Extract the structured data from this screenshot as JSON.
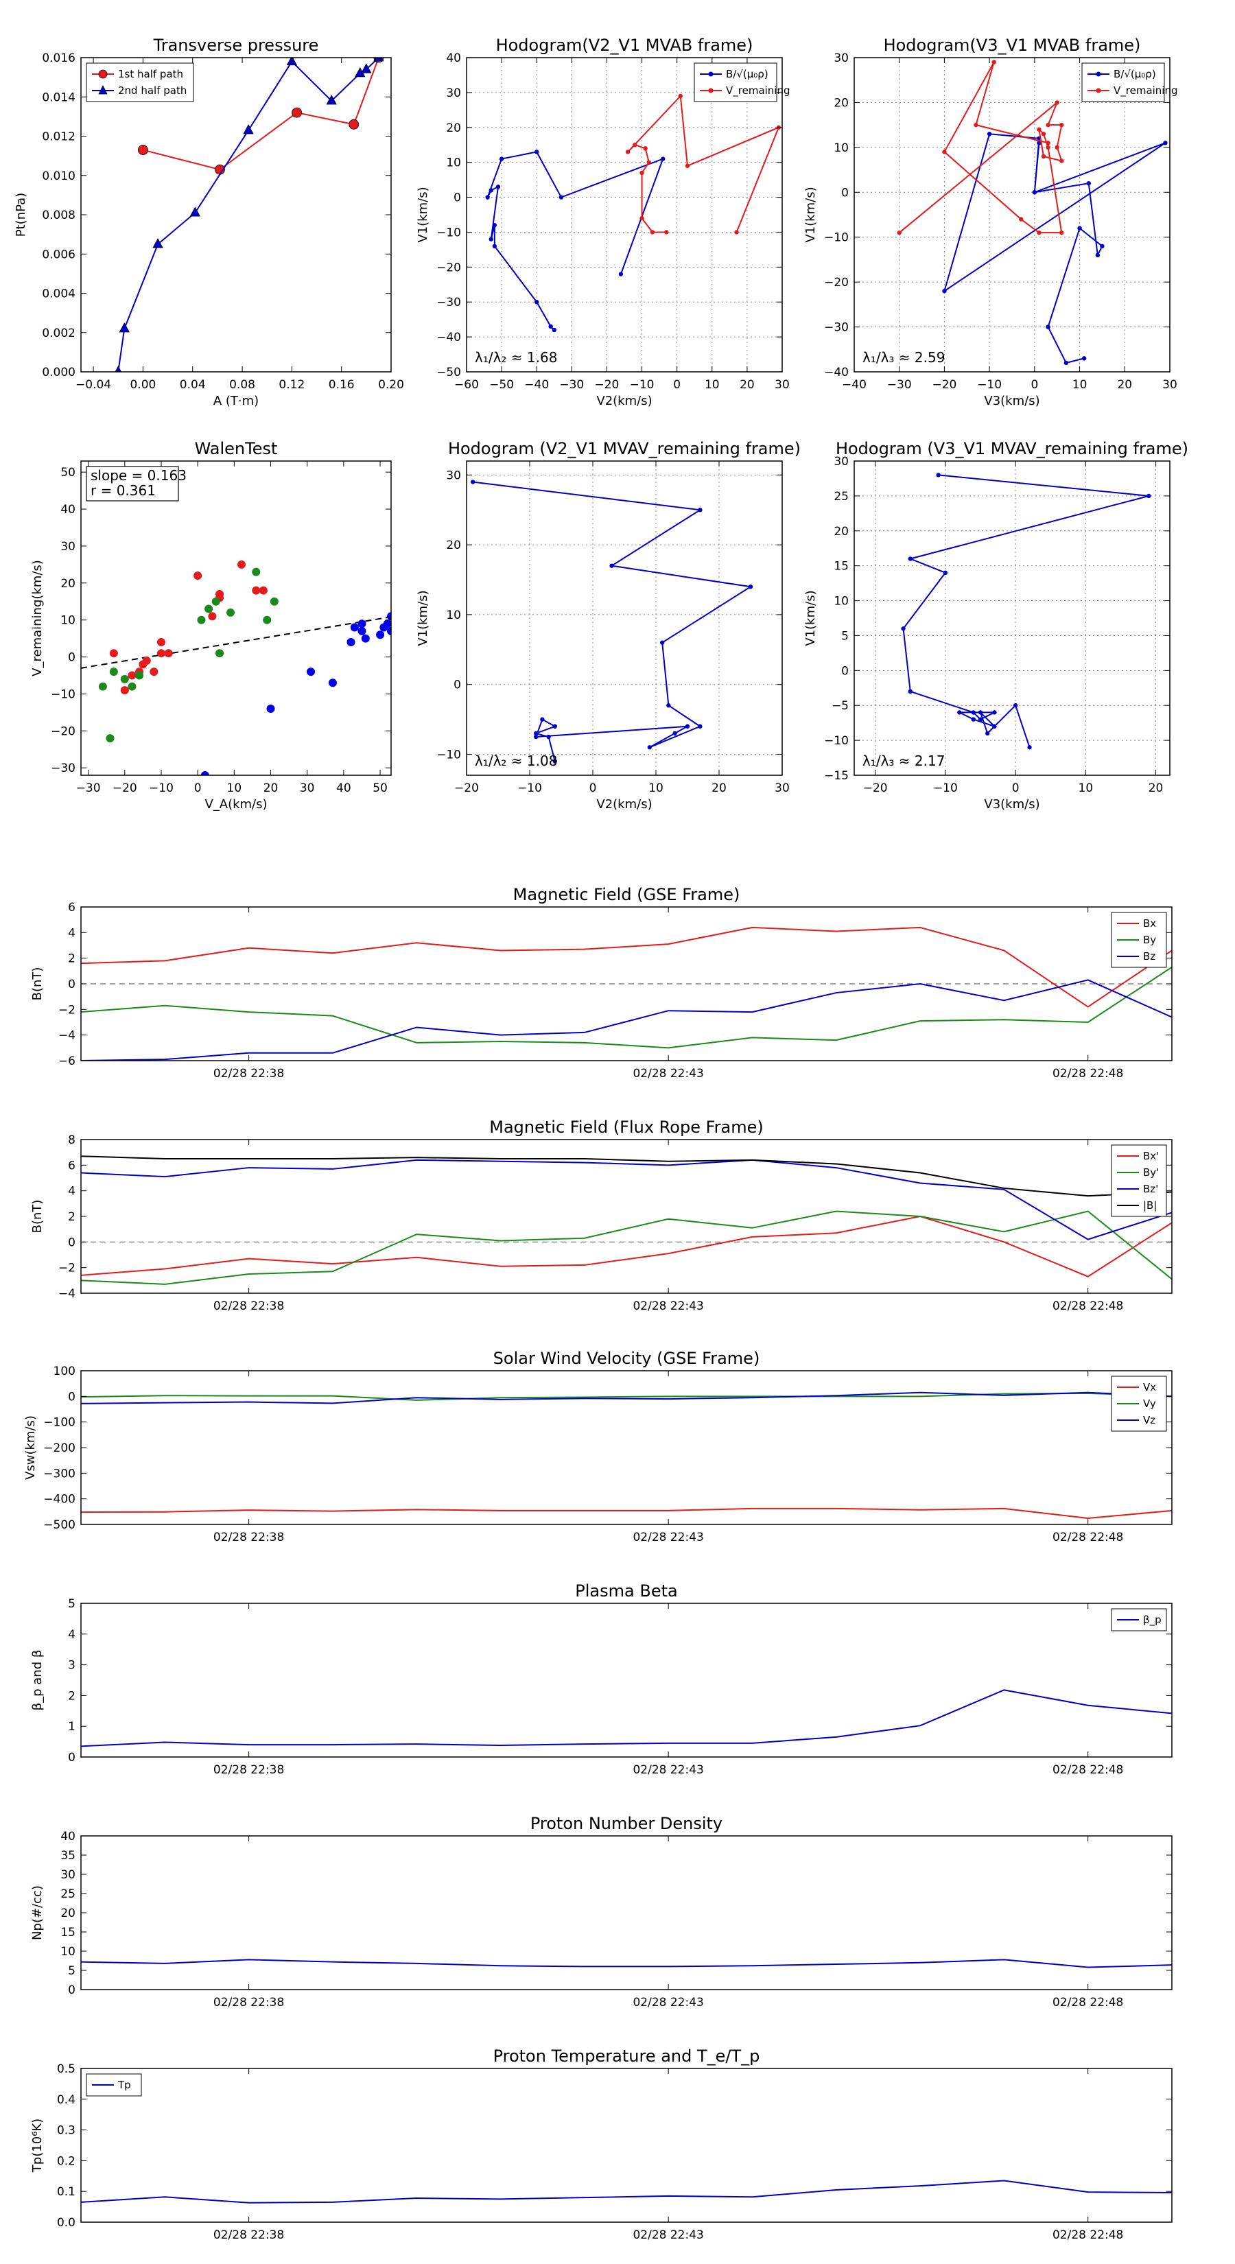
{
  "chart_data": [
    {
      "id": "p1",
      "type": "line",
      "title": "Transverse pressure",
      "xlabel": "A (T·m)",
      "ylabel": "Pt(nPa)",
      "xlim": [
        -0.05,
        0.2
      ],
      "ylim": [
        0,
        0.016
      ],
      "xticks": [
        -0.04,
        0.0,
        0.04,
        0.08,
        0.12,
        0.16,
        0.2
      ],
      "xticklabels": [
        "−0.04",
        "0.00",
        "0.04",
        "0.08",
        "0.12",
        "0.16",
        "0.20"
      ],
      "yticks": [
        0,
        0.002,
        0.004,
        0.006,
        0.008,
        0.01,
        0.012,
        0.014,
        0.016
      ],
      "yticklabels": [
        "0.000",
        "0.002",
        "0.004",
        "0.006",
        "0.008",
        "0.010",
        "0.012",
        "0.014",
        "0.016"
      ],
      "grid": false,
      "legend": "upper-left",
      "series": [
        {
          "name": "1st half path",
          "color": "#e41a1c",
          "marker": "circle",
          "x": [
            0.0,
            0.062,
            0.124,
            0.17,
            0.19
          ],
          "y": [
            0.0113,
            0.0103,
            0.0132,
            0.0126,
            0.016
          ]
        },
        {
          "name": "2nd half path",
          "color": "#0000cc",
          "marker": "triangle",
          "x": [
            -0.02,
            -0.015,
            0.012,
            0.042,
            0.085,
            0.12,
            0.152,
            0.175,
            0.18,
            0.19
          ],
          "y": [
            0.0,
            0.0022,
            0.0065,
            0.0081,
            0.0123,
            0.0158,
            0.0138,
            0.0152,
            0.0154,
            0.016
          ]
        }
      ]
    },
    {
      "id": "p2",
      "type": "line",
      "title": "Hodogram(V2_V1 MVAB frame)",
      "xlabel": "V2(km/s)",
      "ylabel": "V1(km/s)",
      "xlim": [
        -60,
        30
      ],
      "ylim": [
        -50,
        40
      ],
      "xticks": [
        -60,
        -50,
        -40,
        -30,
        -20,
        -10,
        0,
        10,
        20,
        30
      ],
      "yticks": [
        -50,
        -40,
        -30,
        -20,
        -10,
        0,
        10,
        20,
        30,
        40
      ],
      "grid": true,
      "legend": "upper-right",
      "annotation": "λ₁/λ₂ ≈ 1.68",
      "series": [
        {
          "name": "B/√(μ₀ρ)",
          "color": "#0000cc",
          "x": [
            -35,
            -36,
            -40,
            -52,
            -52,
            -53,
            -51,
            -53,
            -54,
            -50,
            -40,
            -33,
            -4,
            -16
          ],
          "y": [
            -38,
            -37,
            -30,
            -14,
            -8,
            -12,
            3,
            2,
            0,
            11,
            13,
            0,
            11,
            -22
          ]
        },
        {
          "name": "V_remaining",
          "color": "#e41a1c",
          "x": [
            -3,
            -7,
            -10,
            -10,
            -8,
            -9,
            -12,
            -14,
            1,
            3,
            29,
            17
          ],
          "y": [
            -10,
            -10,
            -6,
            7,
            10,
            14,
            15,
            13,
            29,
            9,
            20,
            -10
          ]
        }
      ]
    },
    {
      "id": "p3",
      "type": "line",
      "title": "Hodogram(V3_V1 MVAB frame)",
      "xlabel": "V3(km/s)",
      "ylabel": "V1(km/s)",
      "xlim": [
        -40,
        30
      ],
      "ylim": [
        -40,
        30
      ],
      "xticks": [
        -40,
        -30,
        -20,
        -10,
        0,
        10,
        20,
        30
      ],
      "yticks": [
        -40,
        -30,
        -20,
        -10,
        0,
        10,
        20,
        30
      ],
      "grid": true,
      "legend": "upper-right",
      "annotation": "λ₁/λ₃ ≈ 2.59",
      "series": [
        {
          "name": "B/√(μ₀ρ)",
          "color": "#0000cc",
          "x": [
            11,
            7,
            3,
            10,
            15,
            14,
            12,
            0,
            1,
            -10,
            -20,
            29,
            0,
            1
          ],
          "y": [
            -37,
            -38,
            -30,
            -8,
            -12,
            -14,
            2,
            0,
            12,
            13,
            -22,
            11,
            0,
            11
          ]
        },
        {
          "name": "V_remaining",
          "color": "#e41a1c",
          "x": [
            -30,
            5,
            3,
            6,
            5,
            6,
            2,
            1,
            2,
            3,
            6,
            1,
            -3,
            -20,
            -9,
            -13,
            3
          ],
          "y": [
            -9,
            20,
            15,
            15,
            10,
            7,
            8,
            14,
            13,
            10,
            -9,
            -9,
            -6,
            9,
            29,
            15,
            11
          ]
        }
      ]
    },
    {
      "id": "p4",
      "type": "scatter",
      "title": "WalenTest",
      "xlabel": "V_A(km/s)",
      "ylabel": "V_remaining(km/s)",
      "xlim": [
        -32,
        53
      ],
      "ylim": [
        -32,
        53
      ],
      "xticks": [
        -30,
        -20,
        -10,
        0,
        10,
        20,
        30,
        40,
        50
      ],
      "yticks": [
        -30,
        -20,
        -10,
        0,
        10,
        20,
        30,
        40,
        50
      ],
      "grid": false,
      "annotation": [
        "slope = 0.163",
        "r = 0.361"
      ],
      "fit": {
        "slope": 0.163,
        "intercept": 2.2,
        "color": "#000000"
      },
      "series": [
        {
          "color": "#e41a1c",
          "x": [
            -23,
            -20,
            -18,
            -16,
            -15,
            -14,
            -12,
            -10,
            -10,
            -8,
            0,
            4,
            6,
            6,
            12,
            16,
            18
          ],
          "y": [
            1,
            -9,
            -5,
            -4,
            -2,
            -1,
            -4,
            1,
            4,
            1,
            22,
            11,
            17,
            16,
            25,
            18,
            18
          ]
        },
        {
          "color": "#1a8a1a",
          "x": [
            -26,
            -24,
            -23,
            -20,
            -18,
            -16,
            1,
            3,
            5,
            6,
            9,
            16,
            19,
            21
          ],
          "y": [
            -8,
            -22,
            -4,
            -6,
            -8,
            -5,
            10,
            13,
            15,
            1,
            12,
            23,
            10,
            15
          ]
        },
        {
          "color": "#0000ee",
          "x": [
            2,
            20,
            31,
            37,
            42,
            43,
            45,
            45,
            46,
            50,
            51,
            52,
            53,
            53
          ],
          "y": [
            -32,
            -14,
            -4,
            -7,
            4,
            8,
            7,
            9,
            5,
            6,
            8,
            9,
            11,
            7
          ]
        }
      ]
    },
    {
      "id": "p5",
      "type": "line",
      "title": "Hodogram (V2_V1 MVAV_remaining frame)",
      "xlabel": "V2(km/s)",
      "ylabel": "V1(km/s)",
      "xlim": [
        -20,
        30
      ],
      "ylim": [
        -13,
        32
      ],
      "xticks": [
        -20,
        -10,
        0,
        10,
        20,
        30
      ],
      "yticks": [
        -10,
        0,
        10,
        20,
        30
      ],
      "grid": true,
      "annotation": "λ₁/λ₂ ≈ 1.08",
      "series": [
        {
          "color": "#0000cc",
          "x": [
            -6,
            -7,
            -9,
            -6,
            -8,
            -9,
            15,
            13,
            9,
            17,
            12,
            11,
            25,
            3,
            17,
            -19
          ],
          "y": [
            -11,
            -7.5,
            -7,
            -6,
            -5,
            -7.5,
            -6,
            -7,
            -9,
            -6,
            -3,
            6,
            14,
            17,
            25,
            29
          ]
        }
      ]
    },
    {
      "id": "p6",
      "type": "line",
      "title": "Hodogram (V3_V1 MVAV_remaining frame)",
      "xlabel": "V3(km/s)",
      "ylabel": "V1(km/s)",
      "xlim": [
        -23,
        22
      ],
      "ylim": [
        -15,
        30
      ],
      "xticks": [
        -20,
        -10,
        0,
        10,
        20
      ],
      "yticks": [
        -15,
        -10,
        -5,
        0,
        5,
        10,
        15,
        20,
        25,
        30
      ],
      "grid": true,
      "annotation": "λ₁/λ₃ ≈ 2.17",
      "series": [
        {
          "color": "#0000cc",
          "x": [
            2,
            0,
            -4,
            -5,
            -3,
            -6,
            -8,
            -3,
            -5,
            -6,
            -15,
            -16,
            -10,
            -15,
            19,
            -11
          ],
          "y": [
            -11,
            -5,
            -9,
            -6,
            -8,
            -7,
            -6,
            -6,
            -7,
            -6,
            -3,
            6,
            14,
            16,
            25,
            28
          ]
        }
      ]
    },
    {
      "id": "p7",
      "type": "line",
      "title": "Magnetic Field (GSE Frame)",
      "ylabel": "B(nT)",
      "xlim": [
        0,
        13
      ],
      "ylim": [
        -6,
        6
      ],
      "yticks": [
        -6,
        -4,
        -2,
        0,
        2,
        4,
        6
      ],
      "xticks": [
        2,
        7,
        12
      ],
      "xticklabels": [
        "02/28 22:38",
        "02/28 22:43",
        "02/28 22:48"
      ],
      "zero_line": true,
      "legend": "upper-right",
      "x": [
        0,
        1,
        2,
        3,
        4,
        5,
        6,
        7,
        8,
        9,
        10,
        11,
        12,
        13
      ],
      "series": [
        {
          "name": "Bx",
          "color": "#e41a1c",
          "values": [
            1.6,
            1.8,
            2.8,
            2.4,
            3.2,
            2.6,
            2.7,
            3.1,
            4.4,
            4.1,
            4.4,
            2.6,
            -1.8,
            2.6
          ]
        },
        {
          "name": "By",
          "color": "#1a8a1a",
          "values": [
            -2.2,
            -1.7,
            -2.2,
            -2.5,
            -4.6,
            -4.5,
            -4.6,
            -5.0,
            -4.2,
            -4.4,
            -2.9,
            -2.8,
            -3.0,
            1.3
          ]
        },
        {
          "name": "Bz",
          "color": "#0000cc",
          "values": [
            -6.0,
            -5.9,
            -5.4,
            -5.4,
            -3.4,
            -4.0,
            -3.8,
            -2.1,
            -2.2,
            -0.7,
            0.0,
            -1.3,
            0.3,
            -2.6
          ]
        }
      ]
    },
    {
      "id": "p8",
      "type": "line",
      "title": "Magnetic Field (Flux Rope Frame)",
      "ylabel": "B(nT)",
      "xlim": [
        0,
        13
      ],
      "ylim": [
        -4,
        8
      ],
      "yticks": [
        -4,
        -2,
        0,
        2,
        4,
        6,
        8
      ],
      "xticks": [
        2,
        7,
        12
      ],
      "xticklabels": [
        "02/28 22:38",
        "02/28 22:43",
        "02/28 22:48"
      ],
      "zero_line": true,
      "legend": "upper-right",
      "x": [
        0,
        1,
        2,
        3,
        4,
        5,
        6,
        7,
        8,
        9,
        10,
        11,
        12,
        13
      ],
      "series": [
        {
          "name": "Bx'",
          "color": "#e41a1c",
          "values": [
            -2.6,
            -2.1,
            -1.3,
            -1.7,
            -1.2,
            -1.9,
            -1.8,
            -0.9,
            0.4,
            0.7,
            2.0,
            0.0,
            -2.7,
            1.5
          ]
        },
        {
          "name": "By'",
          "color": "#1a8a1a",
          "values": [
            -3.0,
            -3.3,
            -2.5,
            -2.3,
            0.6,
            0.1,
            0.3,
            1.8,
            1.1,
            2.4,
            2.0,
            0.8,
            2.4,
            -2.9
          ]
        },
        {
          "name": "Bz'",
          "color": "#0000cc",
          "values": [
            5.4,
            5.1,
            5.8,
            5.7,
            6.4,
            6.3,
            6.2,
            6.0,
            6.4,
            5.8,
            4.6,
            4.1,
            0.2,
            2.3
          ]
        },
        {
          "name": "|B|",
          "color": "#000000",
          "values": [
            6.7,
            6.5,
            6.5,
            6.5,
            6.6,
            6.5,
            6.5,
            6.3,
            6.4,
            6.1,
            5.4,
            4.2,
            3.6,
            3.9
          ]
        }
      ]
    },
    {
      "id": "p9",
      "type": "line",
      "title": "Solar Wind Velocity (GSE Frame)",
      "ylabel": "Vsw(km/s)",
      "xlim": [
        0,
        13
      ],
      "ylim": [
        -500,
        100
      ],
      "yticks": [
        -500,
        -400,
        -300,
        -200,
        -100,
        0,
        100
      ],
      "xticks": [
        2,
        7,
        12
      ],
      "xticklabels": [
        "02/28 22:38",
        "02/28 22:43",
        "02/28 22:48"
      ],
      "legend": "upper-right",
      "x": [
        0,
        1,
        2,
        3,
        4,
        5,
        6,
        7,
        8,
        9,
        10,
        11,
        12,
        13
      ],
      "series": [
        {
          "name": "Vx",
          "color": "#e41a1c",
          "values": [
            -452,
            -451,
            -444,
            -448,
            -442,
            -446,
            -446,
            -446,
            -438,
            -438,
            -443,
            -438,
            -476,
            -446
          ]
        },
        {
          "name": "Vy",
          "color": "#1a8a1a",
          "values": [
            -2,
            3,
            2,
            2,
            -15,
            -5,
            -3,
            0,
            0,
            0,
            0,
            10,
            12,
            0
          ]
        },
        {
          "name": "Vz",
          "color": "#0000cc",
          "values": [
            -28,
            -25,
            -22,
            -27,
            -5,
            -12,
            -8,
            -10,
            -5,
            3,
            15,
            4,
            15,
            0
          ]
        }
      ]
    },
    {
      "id": "p10",
      "type": "line",
      "title": "Plasma Beta",
      "ylabel": "β_p and β",
      "xlim": [
        0,
        13
      ],
      "ylim": [
        0,
        5
      ],
      "yticks": [
        0,
        1,
        2,
        3,
        4,
        5
      ],
      "xticks": [
        2,
        7,
        12
      ],
      "xticklabels": [
        "02/28 22:38",
        "02/28 22:43",
        "02/28 22:48"
      ],
      "legend": "upper-right",
      "x": [
        0,
        1,
        2,
        3,
        4,
        5,
        6,
        7,
        8,
        9,
        10,
        11,
        12,
        13
      ],
      "series": [
        {
          "name": "β_p",
          "color": "#0000cc",
          "values": [
            0.35,
            0.48,
            0.4,
            0.4,
            0.42,
            0.38,
            0.42,
            0.45,
            0.45,
            0.65,
            1.02,
            2.18,
            1.68,
            1.42
          ]
        }
      ]
    },
    {
      "id": "p11",
      "type": "line",
      "title": "Proton Number Density",
      "ylabel": "Np(#/cc)",
      "xlim": [
        0,
        13
      ],
      "ylim": [
        0,
        40
      ],
      "yticks": [
        0,
        5,
        10,
        15,
        20,
        25,
        30,
        35,
        40
      ],
      "xticks": [
        2,
        7,
        12
      ],
      "xticklabels": [
        "02/28 22:38",
        "02/28 22:43",
        "02/28 22:48"
      ],
      "x": [
        0,
        1,
        2,
        3,
        4,
        5,
        6,
        7,
        8,
        9,
        10,
        11,
        12,
        13
      ],
      "series": [
        {
          "color": "#0000cc",
          "values": [
            7.2,
            6.8,
            7.8,
            7.2,
            6.8,
            6.2,
            6.0,
            6.0,
            6.2,
            6.6,
            7.0,
            7.8,
            5.8,
            6.4
          ]
        }
      ]
    },
    {
      "id": "p12",
      "type": "line",
      "title": "Proton Temperature and T_e/T_p",
      "ylabel": "Tp(10⁶K)",
      "xlim": [
        0,
        13
      ],
      "ylim": [
        0,
        0.5
      ],
      "yticks": [
        0,
        0.1,
        0.2,
        0.3,
        0.4,
        0.5
      ],
      "yticklabels": [
        "0.0",
        "0.1",
        "0.2",
        "0.3",
        "0.4",
        "0.5"
      ],
      "xticks": [
        2,
        7,
        12
      ],
      "xticklabels": [
        "02/28 22:38",
        "02/28 22:43",
        "02/28 22:48"
      ],
      "legend": "upper-left",
      "x": [
        0,
        1,
        2,
        3,
        4,
        5,
        6,
        7,
        8,
        9,
        10,
        11,
        12,
        13
      ],
      "series": [
        {
          "name": "Tp",
          "color": "#0000cc",
          "values": [
            0.065,
            0.082,
            0.063,
            0.065,
            0.078,
            0.075,
            0.08,
            0.085,
            0.082,
            0.105,
            0.118,
            0.135,
            0.098,
            0.096
          ]
        }
      ]
    }
  ]
}
